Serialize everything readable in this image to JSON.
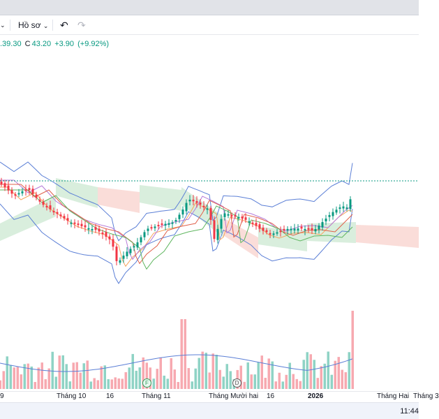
{
  "toolbar": {
    "profile_label": "Hồ sơ",
    "undo_icon": "undo-icon",
    "redo_icon": "redo-icon"
  },
  "legend": {
    "partial_value": ".39.30",
    "close_label": "C",
    "close_value": "43.20",
    "change_value": "+3.90",
    "change_percent": "(+9.92%)"
  },
  "colors": {
    "up": "#089981",
    "down": "#f23645",
    "vol_up": "#8fd3c5",
    "vol_down": "#f7a9b0",
    "bollinger": "#5b7fd6",
    "cloud_green": "#cfead4",
    "cloud_red": "#f9d4d0",
    "ma_orange": "#f7a35c",
    "ma_purple": "#b57ad8",
    "ma_red": "#e0604a",
    "ma_green": "#5fb65f",
    "price_line": "#089981"
  },
  "xaxis": {
    "labels": [
      "9",
      "Tháng 10",
      "16",
      "Tháng 11",
      "Tháng Mười hai",
      "16",
      "2026",
      "Tháng Hai",
      "Tháng 3"
    ]
  },
  "events": {
    "f_label": "F",
    "d_label": "D"
  },
  "status": {
    "clock": "11:44"
  }
}
